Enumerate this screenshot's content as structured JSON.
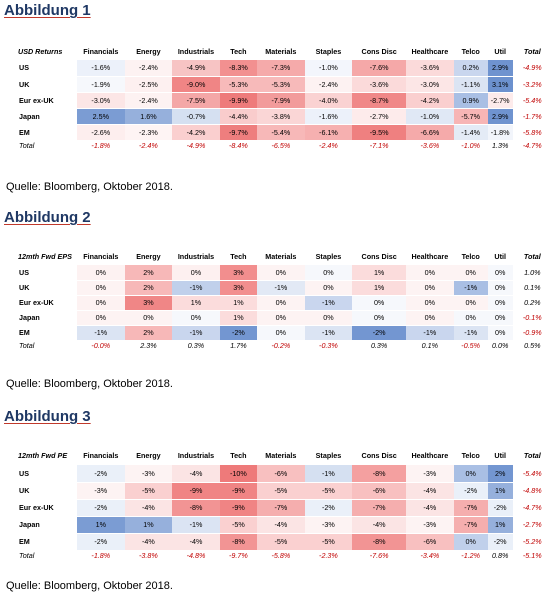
{
  "sections": [
    {
      "title": "Abbildung 1",
      "corner": "USD Returns",
      "columns": [
        "Financials",
        "Energy",
        "Industrials",
        "Tech",
        "Materials",
        "Staples",
        "Cons Disc",
        "Healthcare",
        "Telco",
        "Util",
        "Total"
      ],
      "rows": [
        {
          "label": "US",
          "values": [
            "-1.6%",
            "-2.4%",
            "-4.9%",
            "-8.3%",
            "-7.3%",
            "-1.0%",
            "-7.6%",
            "-3.6%",
            "0.2%",
            "2.9%",
            "-4.9%"
          ],
          "colors": [
            "#ecf1fa",
            "#fdf2f2",
            "#f7c4c4",
            "#f29090",
            "#f5aaaa",
            "#f3f6fc",
            "#f5a8a8",
            "#fbdada",
            "#c9d6ee",
            "#6f93cf",
            ""
          ]
        },
        {
          "label": "UK",
          "values": [
            "-1.9%",
            "-2.5%",
            "-9.0%",
            "-5.3%",
            "-5.3%",
            "-2.4%",
            "-3.6%",
            "-3.0%",
            "-1.1%",
            "3.1%",
            "-3.2%"
          ],
          "colors": [
            "#f6f8fc",
            "#fdf0f0",
            "#f08585",
            "#f7baba",
            "#f7baba",
            "#fdf2f2",
            "#fbdada",
            "#fce6e6",
            "#dbe4f3",
            "#6c91ce",
            ""
          ]
        },
        {
          "label": "Eur ex-UK",
          "values": [
            "-3.0%",
            "-2.4%",
            "-7.5%",
            "-9.9%",
            "-7.9%",
            "-4.0%",
            "-8.7%",
            "-4.2%",
            "0.9%",
            "-2.7%",
            "-5.4%"
          ],
          "colors": [
            "#fce6e6",
            "#fdf2f2",
            "#f4a7a7",
            "#ee7b7b",
            "#f29b9b",
            "#fad2d2",
            "#f08888",
            "#facfcf",
            "#a9bfe4",
            "#fdebeb",
            ""
          ]
        },
        {
          "label": "Japan",
          "values": [
            "2.5%",
            "1.6%",
            "-0.7%",
            "-4.4%",
            "-3.8%",
            "-1.6%",
            "-2.7%",
            "-1.0%",
            "-5.7%",
            "2.9%",
            "-1.7%"
          ],
          "colors": [
            "#7b9cd3",
            "#96b0dc",
            "#d5e0f1",
            "#f9cccc",
            "#fad6d6",
            "#ecf1fa",
            "#fdebeb",
            "#e0e8f5",
            "#f7b5b5",
            "#6f93cf",
            ""
          ]
        },
        {
          "label": "EM",
          "values": [
            "-2.6%",
            "-2.3%",
            "-4.2%",
            "-9.7%",
            "-5.4%",
            "-6.1%",
            "-9.5%",
            "-6.6%",
            "-1.4%",
            "-1.8%",
            "-5.8%"
          ],
          "colors": [
            "#fdeeee",
            "#fef4f4",
            "#facfcf",
            "#ee7e7e",
            "#f7b8b8",
            "#f6b0b0",
            "#ef8080",
            "#f5aaaa",
            "#e4ebf6",
            "#f2f5fb",
            ""
          ]
        },
        {
          "label": "Total",
          "total": true,
          "values": [
            "-1.8%",
            "-2.4%",
            "-4.9%",
            "-8.4%",
            "-6.5%",
            "-2.4%",
            "-7.1%",
            "-3.6%",
            "-1.0%",
            "1.3%",
            "-4.7%"
          ],
          "colors": [
            "",
            "",
            "",
            "",
            "",
            "",
            "",
            "",
            "",
            "",
            ""
          ]
        }
      ],
      "source": "Quelle: Bloomberg, Oktober 2018."
    },
    {
      "title": "Abbildung 2",
      "corner": "12mth Fwd EPS",
      "columns": [
        "Financials",
        "Energy",
        "Industrials",
        "Tech",
        "Materials",
        "Staples",
        "Cons Disc",
        "Healthcare",
        "Telco",
        "Util",
        "Total"
      ],
      "rows": [
        {
          "label": "US",
          "values": [
            "0%",
            "2%",
            "0%",
            "3%",
            "0%",
            "0%",
            "1%",
            "0%",
            "0%",
            "0%",
            "1.0%"
          ],
          "colors": [
            "#fdf2f2",
            "#f7b8b8",
            "#fdf0f0",
            "#f28e8e",
            "#fdf3f3",
            "#f6f8fc",
            "#fbdcdc",
            "#fdf3f3",
            "#fdf3f3",
            "#f6f8fc",
            ""
          ]
        },
        {
          "label": "UK",
          "values": [
            "0%",
            "2%",
            "-1%",
            "3%",
            "-1%",
            "0%",
            "1%",
            "0%",
            "-1%",
            "0%",
            "0.1%"
          ],
          "colors": [
            "#fdf3f3",
            "#f7b8b8",
            "#c0d0eb",
            "#f28e8e",
            "#e2e9f5",
            "#fdf3f3",
            "#fbdcdc",
            "#fdf3f3",
            "#a9bfe4",
            "#f6f8fc",
            ""
          ]
        },
        {
          "label": "Eur ex-UK",
          "values": [
            "0%",
            "3%",
            "1%",
            "1%",
            "0%",
            "-1%",
            "0%",
            "0%",
            "0%",
            "0%",
            "0.2%"
          ],
          "colors": [
            "#fdf2f2",
            "#f08686",
            "#fbdcdc",
            "#fbdcdc",
            "#fdf3f3",
            "#c9d6ee",
            "#f6f8fc",
            "#fdf3f3",
            "#fdf3f3",
            "#f6f8fc",
            ""
          ]
        },
        {
          "label": "Japan",
          "values": [
            "0%",
            "0%",
            "0%",
            "1%",
            "0%",
            "0%",
            "0%",
            "0%",
            "0%",
            "0%",
            "-0.1%"
          ],
          "colors": [
            "#fdf3f3",
            "#fdf3f3",
            "#f6f8fc",
            "#fbdcdc",
            "#fdf3f3",
            "#fdf3f3",
            "#f6f8fc",
            "#fdf3f3",
            "#f6f8fc",
            "#f6f8fc",
            ""
          ]
        },
        {
          "label": "EM",
          "values": [
            "-1%",
            "2%",
            "-1%",
            "-2%",
            "0%",
            "-1%",
            "-2%",
            "-1%",
            "-1%",
            "0%",
            "-0.9%"
          ],
          "colors": [
            "#dbe4f3",
            "#f7b8b8",
            "#c9d6ee",
            "#7396d1",
            "#f6f8fc",
            "#dbe4f3",
            "#7396d1",
            "#c9d6ee",
            "#dbe4f3",
            "#f6f8fc",
            ""
          ]
        },
        {
          "label": "Total",
          "total": true,
          "values": [
            "-0.0%",
            "2.3%",
            "0.3%",
            "1.7%",
            "-0.2%",
            "-0.3%",
            "0.3%",
            "0.1%",
            "-0.5%",
            "0.0%",
            "0.5%"
          ],
          "colors": [
            "",
            "",
            "",
            "",
            "",
            "",
            "",
            "",
            "",
            "",
            ""
          ]
        }
      ],
      "source": "Quelle: Bloomberg, Oktober 2018."
    },
    {
      "title": "Abbildung 3",
      "corner": "12mth Fwd PE",
      "columns": [
        "Financials",
        "Energy",
        "Industrials",
        "Tech",
        "Materials",
        "Staples",
        "Cons Disc",
        "Healthcare",
        "Telco",
        "Util",
        "Total"
      ],
      "rows": [
        {
          "label": "US",
          "values": [
            "-2%",
            "-3%",
            "-4%",
            "-10%",
            "-6%",
            "-1%",
            "-8%",
            "-3%",
            "0%",
            "2%",
            "-5.4%"
          ],
          "colors": [
            "#eaf0f9",
            "#fdf3f3",
            "#fbe4e4",
            "#ee7a7a",
            "#f8c0c0",
            "#d5e0f1",
            "#f4a0a0",
            "#fdf3f3",
            "#a9bfe4",
            "#7396d1",
            ""
          ]
        },
        {
          "label": "UK",
          "values": [
            "-3%",
            "-5%",
            "-9%",
            "-9%",
            "-5%",
            "-5%",
            "-6%",
            "-4%",
            "-2%",
            "1%",
            "-4.8%"
          ],
          "colors": [
            "#fdf3f3",
            "#fad0d0",
            "#f08484",
            "#f08484",
            "#fad0d0",
            "#fad0d0",
            "#f8c0c0",
            "#fbe4e4",
            "#eaf0f9",
            "#96b0dc",
            ""
          ]
        },
        {
          "label": "Eur ex-UK",
          "values": [
            "-2%",
            "-4%",
            "-8%",
            "-9%",
            "-7%",
            "-2%",
            "-7%",
            "-4%",
            "-7%",
            "-2%",
            "-4.7%"
          ],
          "colors": [
            "#eaf0f9",
            "#fbe4e4",
            "#f29494",
            "#f08484",
            "#f5aeae",
            "#eaf0f9",
            "#f5aeae",
            "#fbe4e4",
            "#f5aeae",
            "#eaf0f9",
            ""
          ]
        },
        {
          "label": "Japan",
          "values": [
            "1%",
            "1%",
            "-1%",
            "-5%",
            "-4%",
            "-3%",
            "-4%",
            "-3%",
            "-7%",
            "1%",
            "-2.7%"
          ],
          "colors": [
            "#7b9cd3",
            "#96b0dc",
            "#dbe4f3",
            "#fad0d0",
            "#fbe4e4",
            "#fdf3f3",
            "#fbe4e4",
            "#fdf3f3",
            "#f5aeae",
            "#96b0dc",
            ""
          ]
        },
        {
          "label": "EM",
          "values": [
            "-2%",
            "-4%",
            "-4%",
            "-8%",
            "-5%",
            "-5%",
            "-8%",
            "-6%",
            "0%",
            "-2%",
            "-5.2%"
          ],
          "colors": [
            "#eaf0f9",
            "#fbe4e4",
            "#fbe4e4",
            "#f29494",
            "#fad0d0",
            "#fad0d0",
            "#f29494",
            "#f8c0c0",
            "#c0d0eb",
            "#eaf0f9",
            ""
          ]
        },
        {
          "label": "Total",
          "total": true,
          "values": [
            "-1.8%",
            "-3.8%",
            "-4.8%",
            "-9.7%",
            "-5.8%",
            "-2.3%",
            "-7.6%",
            "-3.4%",
            "-1.2%",
            "0.8%",
            "-5.1%"
          ],
          "colors": [
            "",
            "",
            "",
            "",
            "",
            "",
            "",
            "",
            "",
            "",
            ""
          ]
        }
      ],
      "source": "Quelle: Bloomberg, Oktober 2018."
    }
  ]
}
